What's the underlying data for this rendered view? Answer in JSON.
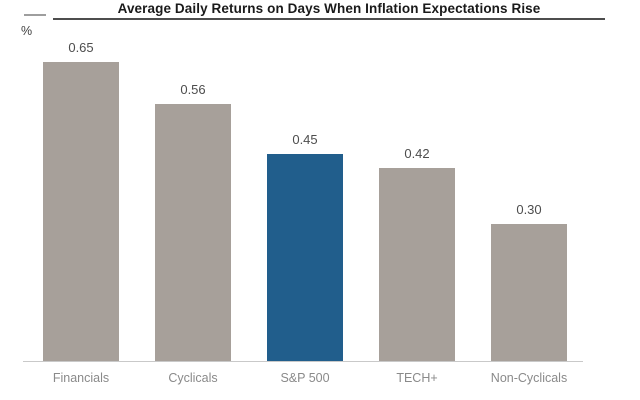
{
  "chart_data": {
    "type": "bar",
    "title": "Average Daily Returns on Days When Inflation Expectations Rise",
    "ylabel": "%",
    "xlabel": "",
    "categories": [
      "Financials",
      "Cyclicals",
      "S&P 500",
      "TECH+",
      "Non-Cyclicals"
    ],
    "values": [
      0.65,
      0.56,
      0.45,
      0.42,
      0.3
    ],
    "value_labels": [
      "0.65",
      "0.56",
      "0.45",
      "0.42",
      "0.30"
    ],
    "highlight_index": 2,
    "bar_color": "#a7a09a",
    "highlight_color": "#215e8c",
    "title_color": "#1a1a1a",
    "value_label_color": "#4d4d4d",
    "category_label_color": "#8a8a8a",
    "axis_line_color": "#c9c9c9",
    "ylim": [
      0,
      0.74
    ],
    "grid": false,
    "legend": "none"
  }
}
